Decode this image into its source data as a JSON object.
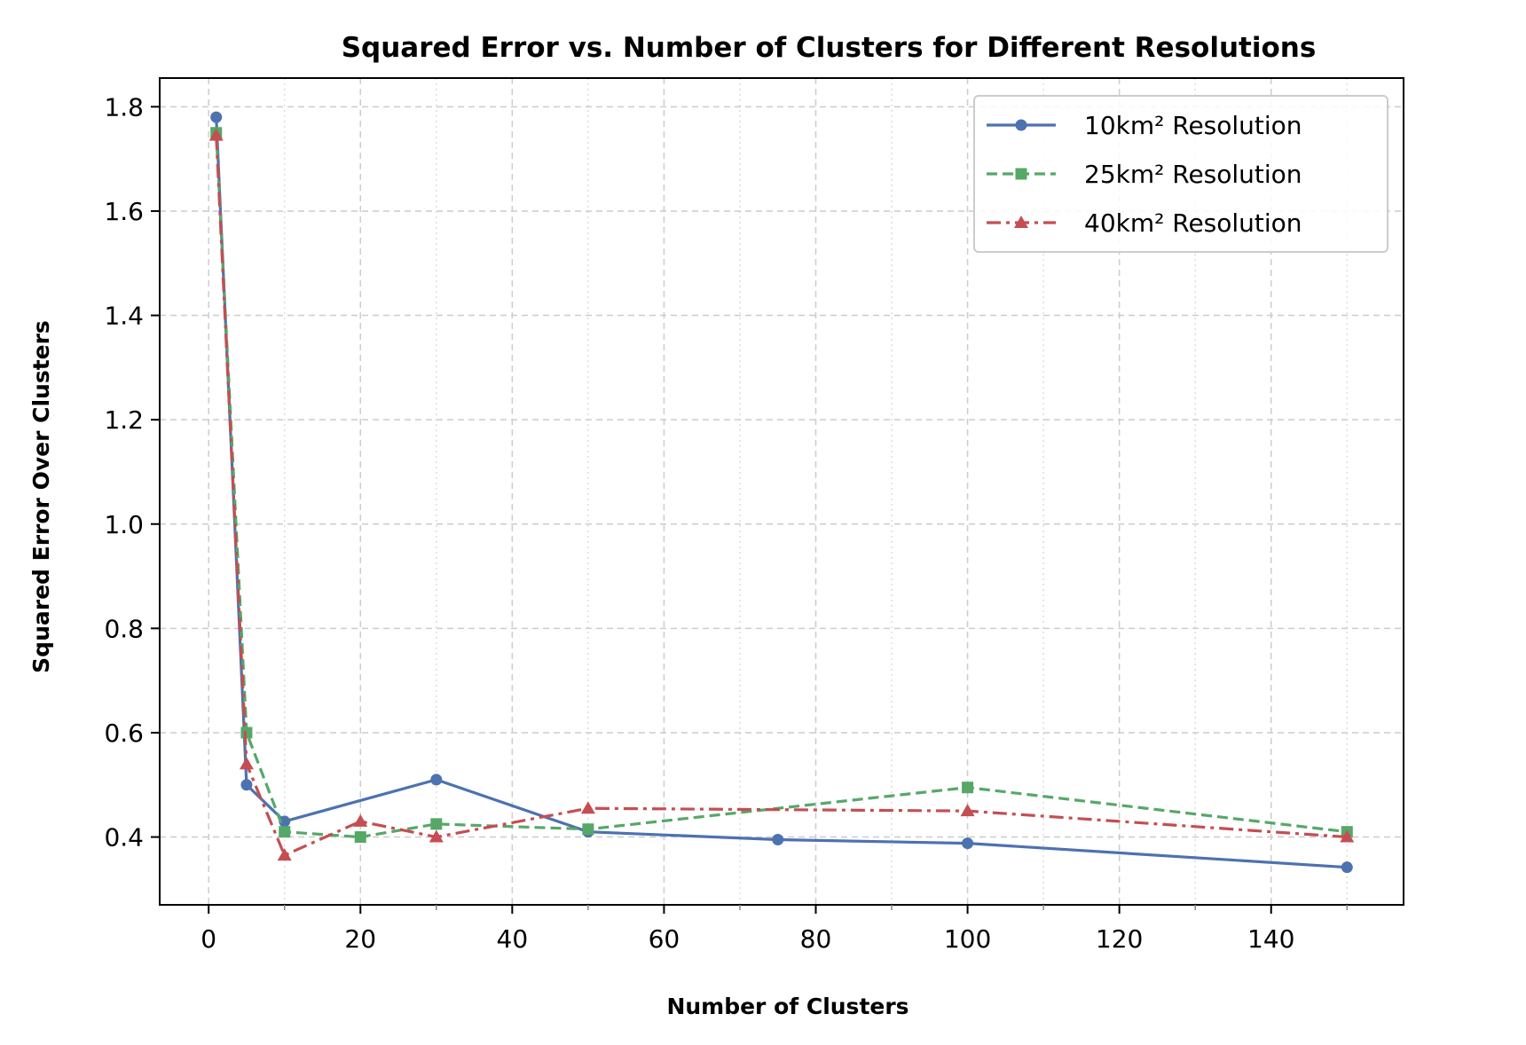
{
  "chart_data": {
    "type": "line",
    "title": "Squared Error vs. Number of Clusters for Different Resolutions",
    "xlabel": "Number of Clusters",
    "ylabel": "Squared Error Over Clusters",
    "xlim": [
      -6.45,
      157.45
    ],
    "ylim": [
      0.27,
      1.855
    ],
    "xticks": [
      0,
      20,
      40,
      60,
      80,
      100,
      120,
      140
    ],
    "xtick_labels": [
      "0",
      "20",
      "40",
      "60",
      "80",
      "100",
      "120",
      "140"
    ],
    "x_minor_ticks": [
      10,
      30,
      50,
      70,
      90,
      110,
      130,
      150
    ],
    "yticks": [
      0.4,
      0.6,
      0.8,
      1.0,
      1.2,
      1.4,
      1.6,
      1.8
    ],
    "ytick_labels": [
      "0.4",
      "0.6",
      "0.8",
      "1.0",
      "1.2",
      "1.4",
      "1.6",
      "1.8"
    ],
    "grid": true,
    "legend_position": "top-right",
    "series": [
      {
        "name": "10km² Resolution",
        "color": "#4c72b0",
        "marker": "circle",
        "linestyle": "solid",
        "x": [
          1,
          5,
          10,
          30,
          50,
          75,
          100,
          150
        ],
        "y": [
          1.78,
          0.5,
          0.43,
          0.51,
          0.41,
          0.395,
          0.388,
          0.342
        ]
      },
      {
        "name": "25km² Resolution",
        "color": "#55a868",
        "marker": "square",
        "linestyle": "dashed",
        "x": [
          1,
          5,
          10,
          20,
          30,
          50,
          100,
          150
        ],
        "y": [
          1.75,
          0.6,
          0.41,
          0.4,
          0.425,
          0.415,
          0.495,
          0.41
        ]
      },
      {
        "name": "40km² Resolution",
        "color": "#c44e52",
        "marker": "triangle",
        "linestyle": "dashdot",
        "x": [
          1,
          5,
          10,
          20,
          30,
          50,
          100,
          150
        ],
        "y": [
          1.745,
          0.54,
          0.365,
          0.43,
          0.4,
          0.455,
          0.45,
          0.4
        ]
      }
    ]
  }
}
